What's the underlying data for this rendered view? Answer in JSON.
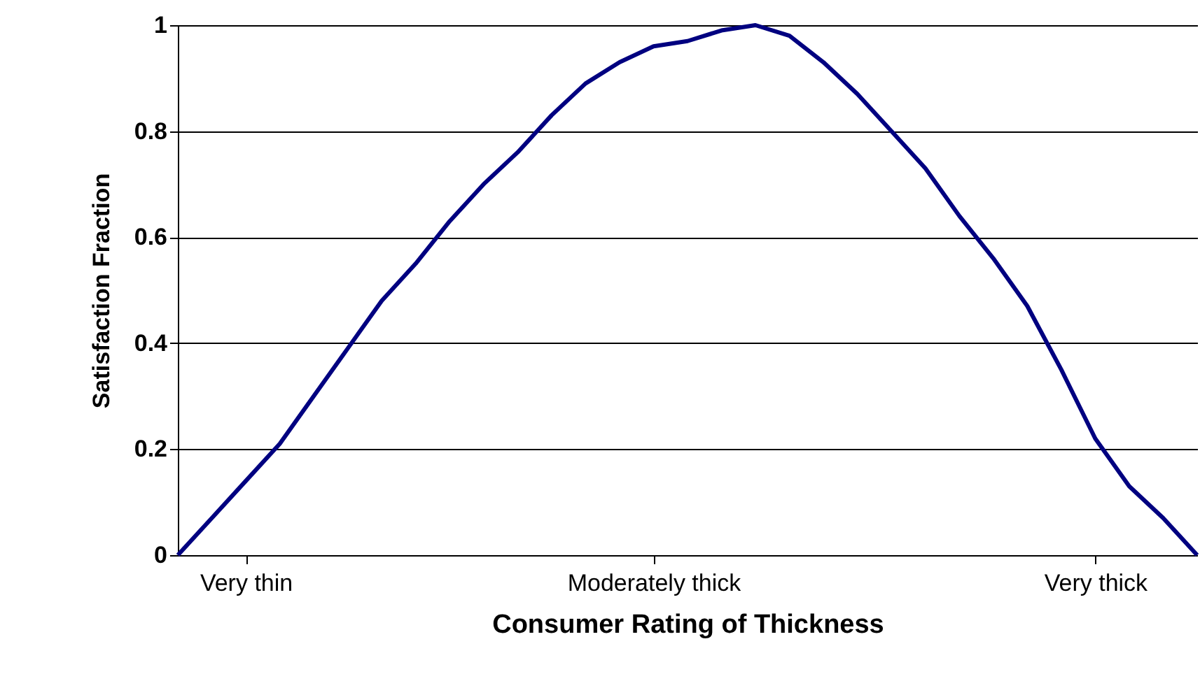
{
  "chart_data": {
    "type": "line",
    "xlabel": "Consumer Rating of Thickness",
    "ylabel": "Satisfaction Fraction",
    "categories": [
      null,
      null,
      "Very thin",
      null,
      null,
      null,
      null,
      null,
      null,
      null,
      null,
      null,
      null,
      null,
      "Moderately thick",
      null,
      null,
      null,
      null,
      null,
      null,
      null,
      null,
      null,
      null,
      null,
      null,
      "Very thick",
      null,
      null,
      null
    ],
    "series": [
      {
        "color": "#000080",
        "values": [
          0,
          0.07,
          0.14,
          0.21,
          0.3,
          0.39,
          0.48,
          0.55,
          0.63,
          0.7,
          0.76,
          0.83,
          0.89,
          0.93,
          0.96,
          0.97,
          0.99,
          1,
          0.98,
          0.93,
          0.87,
          0.8,
          0.73,
          0.64,
          0.56,
          0.47,
          0.35,
          0.22,
          0.13,
          0.07,
          0
        ]
      }
    ],
    "ylim": [
      0,
      1
    ],
    "yticks": [
      0,
      0.2,
      0.4,
      0.6,
      0.8,
      1
    ],
    "grid": "y",
    "marker": "none",
    "line_style": "solid"
  }
}
